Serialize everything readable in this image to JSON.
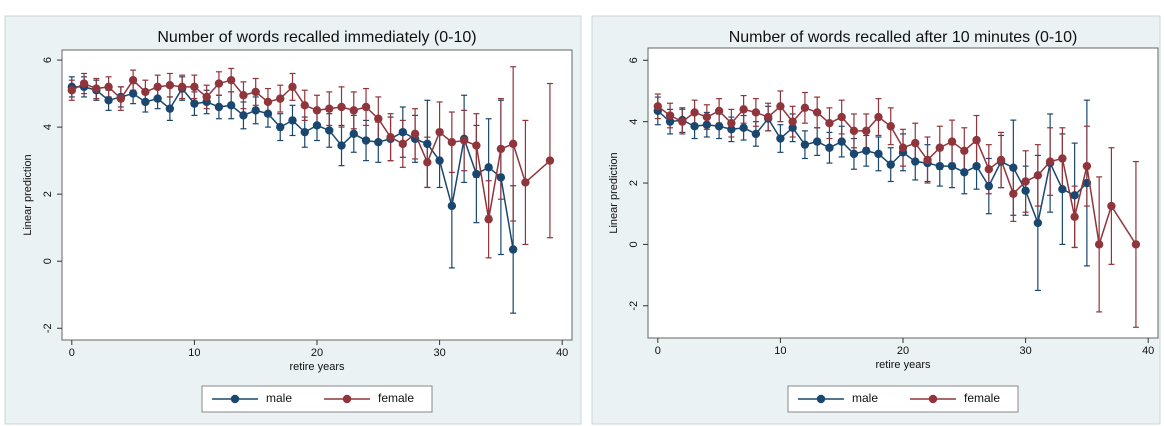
{
  "chart_data": [
    {
      "type": "line",
      "title": "Number of words recalled immediately (0-10)",
      "x_label": "retire years",
      "y_label": "Linear prediction",
      "xlim": [
        -0.8,
        40.8
      ],
      "xticks": [
        0,
        10,
        20,
        30,
        40
      ],
      "ylim": [
        -2.35,
        6.3
      ],
      "yticks": [
        -2,
        0,
        2,
        4,
        6
      ],
      "grid": false,
      "legend": "bottom",
      "series": [
        {
          "name": "male",
          "color": "#1a476f",
          "x": [
            0,
            1,
            2,
            3,
            4,
            5,
            6,
            7,
            8,
            9,
            10,
            11,
            12,
            13,
            14,
            15,
            16,
            17,
            18,
            19,
            20,
            21,
            22,
            23,
            24,
            25,
            26,
            27,
            28,
            29,
            30,
            31,
            32,
            33,
            34,
            35,
            36
          ],
          "values": [
            5.2,
            5.2,
            5.1,
            4.8,
            4.9,
            5.0,
            4.75,
            4.85,
            4.55,
            5.15,
            4.7,
            4.75,
            4.6,
            4.65,
            4.35,
            4.5,
            4.4,
            4.0,
            4.2,
            3.85,
            4.05,
            3.9,
            3.45,
            3.8,
            3.6,
            3.55,
            3.65,
            3.85,
            3.65,
            3.5,
            3.0,
            1.65,
            3.65,
            2.6,
            2.8,
            2.5,
            0.35
          ],
          "errors": [
            0.3,
            0.3,
            0.3,
            0.3,
            0.3,
            0.3,
            0.3,
            0.3,
            0.35,
            0.35,
            0.35,
            0.35,
            0.35,
            0.4,
            0.4,
            0.4,
            0.4,
            0.4,
            0.45,
            0.45,
            0.45,
            0.5,
            0.6,
            0.55,
            0.6,
            0.6,
            0.65,
            0.75,
            0.7,
            1.3,
            0.8,
            1.85,
            1.3,
            1.45,
            1.45,
            2.3,
            1.9
          ]
        },
        {
          "name": "female",
          "color": "#90353b",
          "x": [
            0,
            1,
            2,
            3,
            4,
            5,
            6,
            7,
            8,
            9,
            10,
            11,
            12,
            13,
            14,
            15,
            16,
            17,
            18,
            19,
            20,
            21,
            22,
            23,
            24,
            25,
            26,
            27,
            28,
            29,
            30,
            31,
            32,
            33,
            34,
            35,
            36,
            37,
            39
          ],
          "values": [
            5.1,
            5.3,
            5.15,
            5.2,
            4.85,
            5.4,
            5.05,
            5.2,
            5.25,
            5.2,
            5.2,
            4.9,
            5.3,
            5.4,
            4.95,
            5.05,
            4.75,
            4.85,
            5.2,
            4.65,
            4.5,
            4.55,
            4.6,
            4.5,
            4.6,
            4.25,
            3.7,
            3.5,
            3.8,
            2.95,
            3.85,
            3.55,
            3.6,
            3.45,
            1.25,
            3.35,
            3.5,
            2.35,
            3.0
          ],
          "errors": [
            0.3,
            0.3,
            0.3,
            0.3,
            0.35,
            0.3,
            0.35,
            0.35,
            0.35,
            0.35,
            0.35,
            0.35,
            0.35,
            0.35,
            0.4,
            0.4,
            0.4,
            0.4,
            0.4,
            0.45,
            0.45,
            0.5,
            0.6,
            0.55,
            0.55,
            0.65,
            0.7,
            0.7,
            0.75,
            0.75,
            0.9,
            0.9,
            0.9,
            0.95,
            1.15,
            1.5,
            2.3,
            1.85,
            2.3
          ]
        }
      ]
    },
    {
      "type": "line",
      "title": "Number of words recalled after 10 minutes (0-10)",
      "x_label": "retire years",
      "y_label": "Linear prediction",
      "xlim": [
        -0.8,
        40.8
      ],
      "xticks": [
        0,
        10,
        20,
        30,
        40
      ],
      "ylim": [
        -3.05,
        6.4
      ],
      "yticks": [
        -2,
        0,
        2,
        4,
        6
      ],
      "grid": false,
      "legend": "bottom",
      "series": [
        {
          "name": "male",
          "color": "#1a476f",
          "x": [
            0,
            1,
            2,
            3,
            4,
            5,
            6,
            7,
            8,
            9,
            10,
            11,
            12,
            13,
            14,
            15,
            16,
            17,
            18,
            19,
            20,
            21,
            22,
            23,
            24,
            25,
            26,
            27,
            28,
            29,
            30,
            31,
            32,
            33,
            34,
            35
          ],
          "values": [
            4.35,
            4.0,
            4.05,
            3.85,
            3.9,
            3.85,
            3.75,
            3.8,
            3.6,
            4.1,
            3.45,
            3.8,
            3.25,
            3.35,
            3.15,
            3.35,
            2.95,
            3.05,
            2.95,
            2.6,
            3.0,
            2.7,
            2.65,
            2.55,
            2.55,
            2.35,
            2.55,
            1.9,
            2.7,
            2.5,
            1.75,
            0.7,
            2.65,
            1.8,
            1.6,
            2.0
          ],
          "errors": [
            0.45,
            0.4,
            0.4,
            0.4,
            0.4,
            0.4,
            0.4,
            0.4,
            0.4,
            0.4,
            0.45,
            0.45,
            0.45,
            0.45,
            0.5,
            0.5,
            0.5,
            0.5,
            0.55,
            0.55,
            0.6,
            0.6,
            0.6,
            0.65,
            0.7,
            0.7,
            0.75,
            0.9,
            0.85,
            1.55,
            0.8,
            2.2,
            1.6,
            1.8,
            1.7,
            2.7
          ]
        },
        {
          "name": "female",
          "color": "#90353b",
          "x": [
            0,
            1,
            2,
            3,
            4,
            5,
            6,
            7,
            8,
            9,
            10,
            11,
            12,
            13,
            14,
            15,
            16,
            17,
            18,
            19,
            20,
            21,
            22,
            23,
            24,
            25,
            26,
            27,
            28,
            29,
            30,
            31,
            32,
            33,
            34,
            35,
            36,
            37,
            39
          ],
          "values": [
            4.5,
            4.2,
            4.0,
            4.3,
            4.15,
            4.35,
            3.95,
            4.4,
            4.3,
            4.15,
            4.5,
            4.0,
            4.45,
            4.3,
            3.95,
            4.15,
            3.7,
            3.7,
            4.15,
            3.85,
            3.15,
            3.3,
            2.75,
            3.15,
            3.35,
            3.05,
            3.4,
            2.45,
            2.75,
            1.65,
            2.05,
            2.25,
            2.7,
            2.8,
            0.9,
            2.55,
            0.0,
            1.25,
            0.0
          ],
          "errors": [
            0.4,
            0.4,
            0.4,
            0.4,
            0.4,
            0.4,
            0.45,
            0.45,
            0.45,
            0.45,
            0.5,
            0.5,
            0.5,
            0.5,
            0.5,
            0.55,
            0.55,
            0.55,
            0.6,
            0.6,
            0.6,
            0.65,
            0.75,
            0.7,
            0.7,
            0.75,
            0.8,
            0.8,
            0.9,
            0.9,
            1.0,
            1.0,
            1.1,
            1.0,
            1.0,
            1.3,
            2.2,
            1.9,
            2.7
          ]
        }
      ]
    }
  ]
}
